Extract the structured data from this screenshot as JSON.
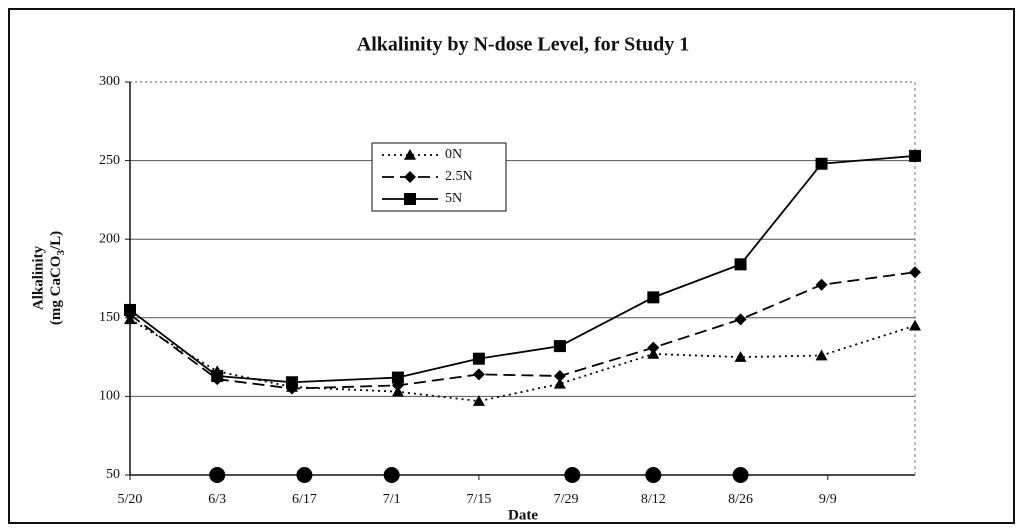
{
  "chart_data": {
    "type": "line",
    "title": "Alkalinity by N-dose Level, for Study 1",
    "xlabel": "Date",
    "ylabel": {
      "line1": "Alkalinity",
      "line2": [
        "(mg CaCO",
        "3",
        "/L)"
      ]
    },
    "xlim": [
      0,
      126
    ],
    "xticks": [
      {
        "value": 0,
        "label": "5/20"
      },
      {
        "value": 14,
        "label": "6/3"
      },
      {
        "value": 28,
        "label": "6/17"
      },
      {
        "value": 42,
        "label": "7/1"
      },
      {
        "value": 56,
        "label": "7/15"
      },
      {
        "value": 70,
        "label": "7/29"
      },
      {
        "value": 84,
        "label": "8/12"
      },
      {
        "value": 98,
        "label": "8/26"
      },
      {
        "value": 112,
        "label": "9/9"
      }
    ],
    "ylim": [
      50,
      300
    ],
    "yticks": [
      50,
      100,
      150,
      200,
      250,
      300
    ],
    "grid": true,
    "series": [
      {
        "name": "0N",
        "color": "#000000",
        "dash": "dotted",
        "marker": "triangle",
        "x": [
          0,
          14,
          26,
          43,
          56,
          69,
          84,
          98,
          111,
          126
        ],
        "values": [
          149,
          116,
          106,
          103,
          97,
          108,
          127,
          125,
          126,
          145
        ]
      },
      {
        "name": "2.5N",
        "color": "#000000",
        "dash": "dashed",
        "marker": "diamond",
        "x": [
          0,
          14,
          26,
          43,
          56,
          69,
          84,
          98,
          111,
          126
        ],
        "values": [
          152,
          111,
          105,
          107,
          114,
          113,
          131,
          149,
          171,
          179
        ]
      },
      {
        "name": "5N",
        "color": "#000000",
        "dash": "solid",
        "marker": "square",
        "x": [
          0,
          14,
          26,
          43,
          56,
          69,
          84,
          98,
          111,
          126
        ],
        "values": [
          155,
          113,
          109,
          112,
          124,
          132,
          163,
          184,
          248,
          253
        ]
      },
      {
        "color": "#000000",
        "dash": "none",
        "marker": "circle",
        "x": [
          14,
          28,
          42,
          71,
          84,
          98
        ],
        "values": [
          50,
          50,
          50,
          50,
          50,
          50
        ]
      }
    ]
  }
}
